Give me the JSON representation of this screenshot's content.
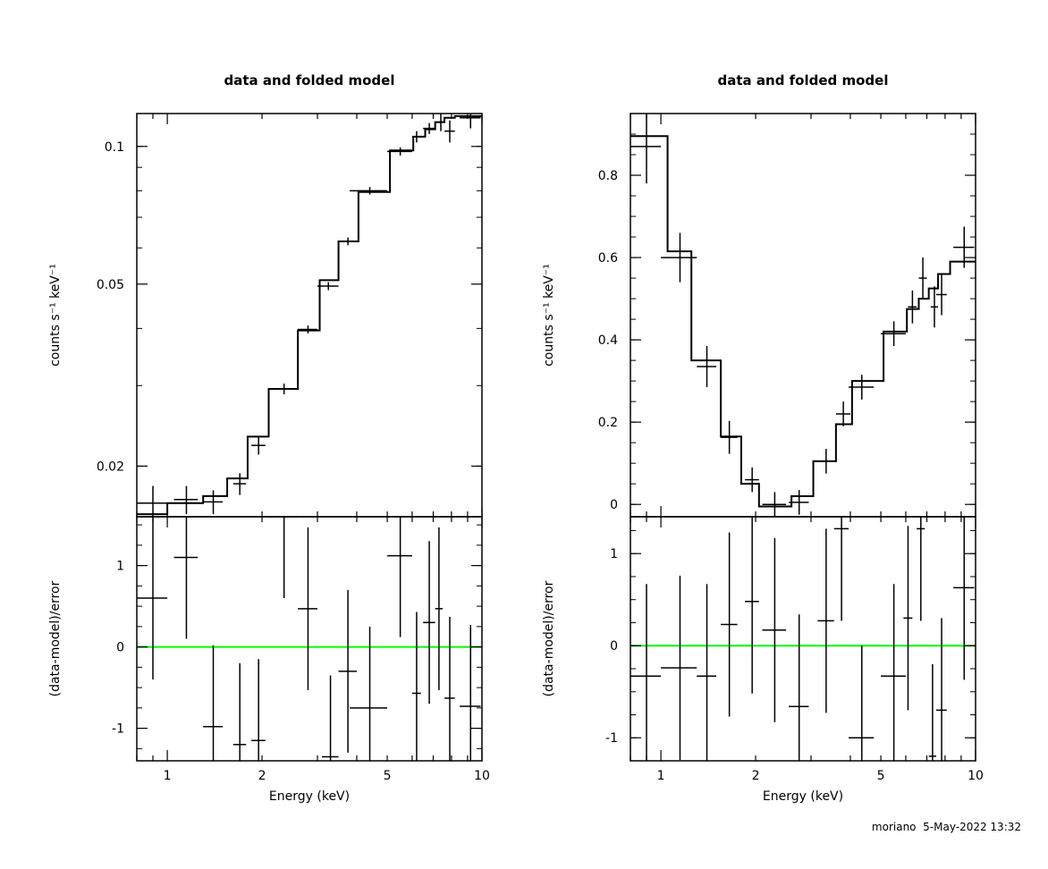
{
  "colors": {
    "data": "#000000",
    "model": "#000000",
    "zero_line": "#00ff00",
    "background": "#ffffff"
  },
  "footer": {
    "user": "moriano",
    "datetime": "5-May-2022 13:32"
  },
  "chart_data": [
    {
      "type": "line",
      "title": "data and folded model",
      "xlabel": "Energy (keV)",
      "xscale": "log",
      "xlim": [
        0.8,
        10
      ],
      "x_ticks": [
        1,
        2,
        5,
        10
      ],
      "top": {
        "ylabel": "counts s⁻¹ keV⁻¹",
        "yscale": "log",
        "ylim": [
          0.0155,
          0.118
        ],
        "y_ticks": [
          0.02,
          0.05,
          0.1
        ],
        "series": [
          {
            "role": "data",
            "x": [
              0.9,
              1.15,
              1.4,
              1.7,
              1.95,
              2.35,
              2.8,
              3.25,
              3.75,
              4.4,
              5.5,
              6.2,
              6.8,
              7.4,
              7.9,
              9.2
            ],
            "xerr": [
              0.1,
              0.1,
              0.1,
              0.08,
              0.1,
              0.25,
              0.2,
              0.25,
              0.25,
              0.6,
              0.5,
              0.2,
              0.3,
              0.2,
              0.3,
              0.7
            ],
            "y": [
              0.0166,
              0.0169,
              0.0167,
              0.0183,
              0.0222,
              0.0295,
              0.0398,
              0.0495,
              0.062,
              0.08,
              0.0975,
              0.105,
              0.1095,
              0.113,
              0.108,
              0.1155
            ],
            "yerr": [
              0.0015,
              0.0012,
              0.001,
              0.001,
              0.001,
              0.0008,
              0.0008,
              0.001,
              0.0012,
              0.0015,
              0.002,
              0.003,
              0.003,
              0.005,
              0.006,
              0.006
            ]
          },
          {
            "role": "model",
            "edges": [
              0.8,
              1.0,
              1.3,
              1.55,
              1.8,
              2.1,
              2.6,
              3.05,
              3.5,
              4.05,
              5.1,
              6.05,
              6.6,
              7.1,
              7.6,
              8.2,
              10
            ],
            "y": [
              0.0157,
              0.0166,
              0.0172,
              0.0188,
              0.0232,
              0.0295,
              0.0396,
              0.051,
              0.062,
              0.0795,
              0.098,
              0.105,
              0.109,
              0.113,
              0.1155,
              0.1165
            ]
          }
        ]
      },
      "bottom": {
        "ylabel": "(data-model)/error",
        "ylim": [
          -1.4,
          1.6
        ],
        "y_ticks": [
          -1,
          0,
          1
        ],
        "series": [
          {
            "role": "residuals",
            "x": [
              0.9,
              1.15,
              1.4,
              1.7,
              1.95,
              2.35,
              2.8,
              3.75,
              4.4,
              5.5,
              6.2,
              6.8,
              7.3,
              7.9,
              9.2
            ],
            "xerr": [
              0.1,
              0.1,
              0.1,
              0.08,
              0.1,
              0.25,
              0.2,
              0.25,
              0.6,
              0.5,
              0.2,
              0.3,
              0.2,
              0.3,
              0.7
            ],
            "y": [
              0.6,
              1.1,
              -0.98,
              -1.2,
              -1.15,
              1.6,
              0.47,
              -0.3,
              -0.75,
              1.12,
              -0.57,
              0.3,
              0.47,
              -0.63,
              -0.73
            ],
            "yerr": [
              1.0,
              1.0,
              1.0,
              1.0,
              1.0,
              1.0,
              1.0,
              1.0,
              1.0,
              1.0,
              1.0,
              1.0,
              1.0,
              1.0,
              1.0
            ]
          },
          {
            "role": "residual-extra",
            "x": [
              3.3
            ],
            "xerr": [
              0.2
            ],
            "y": [
              -1.35
            ],
            "yerr": [
              1.0
            ]
          }
        ]
      }
    },
    {
      "type": "line",
      "title": "data and folded model",
      "xlabel": "Energy (keV)",
      "xscale": "log",
      "xlim": [
        0.8,
        10
      ],
      "x_ticks": [
        1,
        2,
        5,
        10
      ],
      "top": {
        "ylabel": "counts s⁻¹ keV⁻¹",
        "yscale": "linear",
        "ylim": [
          -0.03,
          0.95
        ],
        "y_ticks": [
          0,
          0.2,
          0.4,
          0.6,
          0.8
        ],
        "series": [
          {
            "role": "data",
            "x": [
              0.9,
              1.15,
              1.4,
              1.65,
              1.95,
              2.3,
              2.75,
              3.35,
              3.8,
              4.35,
              5.5,
              6.3,
              6.8,
              7.4,
              7.8,
              9.2
            ],
            "xerr": [
              0.1,
              0.15,
              0.1,
              0.1,
              0.1,
              0.2,
              0.2,
              0.2,
              0.2,
              0.4,
              0.5,
              0.2,
              0.2,
              0.2,
              0.3,
              0.7
            ],
            "y": [
              0.87,
              0.6,
              0.335,
              0.163,
              0.06,
              0.0,
              0.005,
              0.105,
              0.22,
              0.285,
              0.415,
              0.48,
              0.55,
              0.48,
              0.51,
              0.625
            ],
            "yerr": [
              0.09,
              0.06,
              0.05,
              0.04,
              0.03,
              0.03,
              0.03,
              0.03,
              0.03,
              0.03,
              0.03,
              0.04,
              0.05,
              0.05,
              0.05,
              0.05
            ]
          },
          {
            "role": "model",
            "edges": [
              0.8,
              1.05,
              1.25,
              1.55,
              1.8,
              2.05,
              2.6,
              3.05,
              3.6,
              4.05,
              5.1,
              6.05,
              6.6,
              7.1,
              7.6,
              8.3,
              10
            ],
            "y": [
              0.895,
              0.615,
              0.35,
              0.165,
              0.05,
              -0.005,
              0.02,
              0.105,
              0.195,
              0.3,
              0.42,
              0.475,
              0.5,
              0.525,
              0.56,
              0.59
            ]
          }
        ]
      },
      "bottom": {
        "ylabel": "(data-model)/error",
        "ylim": [
          -1.25,
          1.4
        ],
        "y_ticks": [
          -1,
          0,
          1
        ],
        "series": [
          {
            "role": "residuals",
            "x": [
              0.9,
              1.15,
              1.4,
              1.65,
              1.95,
              2.3,
              2.75,
              3.35,
              3.75,
              4.35,
              5.5,
              6.1,
              6.7,
              7.3,
              7.8,
              9.2
            ],
            "xerr": [
              0.1,
              0.15,
              0.1,
              0.1,
              0.1,
              0.2,
              0.2,
              0.2,
              0.2,
              0.4,
              0.5,
              0.2,
              0.2,
              0.2,
              0.3,
              0.7
            ],
            "y": [
              -0.33,
              -0.24,
              -0.33,
              0.23,
              0.48,
              0.17,
              -0.66,
              0.27,
              1.27,
              -1.0,
              -0.33,
              0.3,
              1.27,
              -1.2,
              -0.7,
              0.63
            ],
            "yerr": [
              1.0,
              1.0,
              1.0,
              1.0,
              1.0,
              1.0,
              1.0,
              1.0,
              1.0,
              1.0,
              1.0,
              1.0,
              1.0,
              1.0,
              1.0,
              1.0
            ]
          }
        ]
      }
    }
  ]
}
